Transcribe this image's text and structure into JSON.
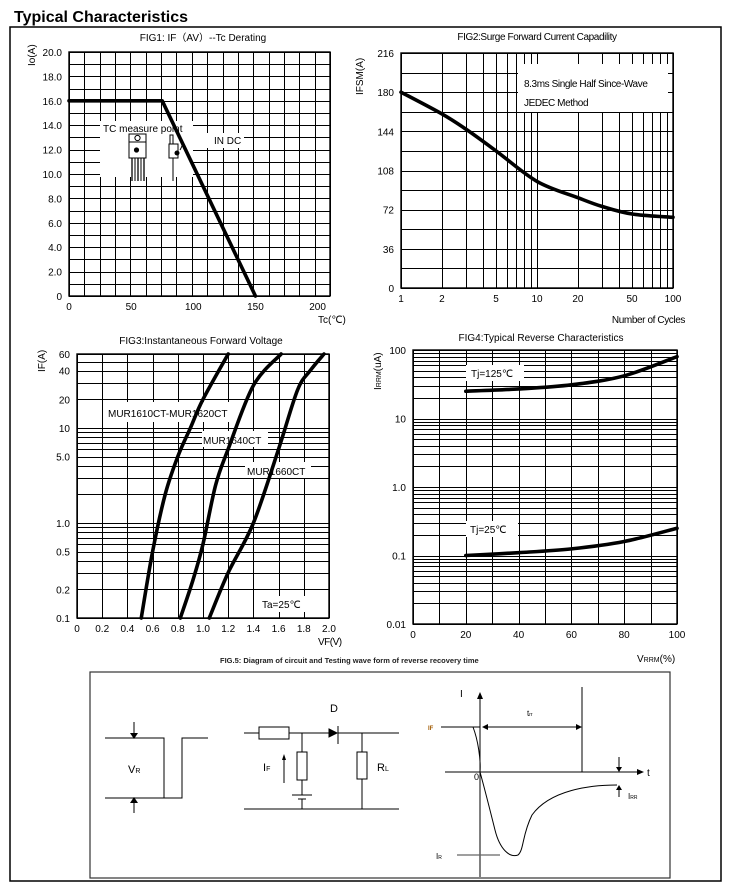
{
  "page_title": "Typical Characteristics",
  "chart_data": [
    {
      "type": "line",
      "title": "FIG1: IF（AV）--Tc  Derating",
      "xlabel": "Tc(℃)",
      "ylabel": "Io(A)",
      "x_scale": "linear",
      "y_scale": "linear",
      "xlim": [
        0,
        210
      ],
      "ylim": [
        0,
        20
      ],
      "grid": true,
      "xticks": [
        {
          "value": 0,
          "label": "0"
        },
        {
          "value": 50,
          "label": "50"
        },
        {
          "value": 100,
          "label": "100"
        },
        {
          "value": 150,
          "label": "150"
        },
        {
          "value": 200,
          "label": "200"
        }
      ],
      "yticks": [
        {
          "value": 0,
          "label": "0"
        },
        {
          "value": 2,
          "label": "2.0"
        },
        {
          "value": 4,
          "label": "4.0"
        },
        {
          "value": 6,
          "label": "6.0"
        },
        {
          "value": 8,
          "label": "8.0"
        },
        {
          "value": 10,
          "label": "10.0"
        },
        {
          "value": 12,
          "label": "12.0"
        },
        {
          "value": 14,
          "label": "14.0"
        },
        {
          "value": 16,
          "label": "16.0"
        },
        {
          "value": 18,
          "label": "18.0"
        },
        {
          "value": 20,
          "label": "20.0"
        }
      ],
      "series": [
        {
          "x": [
            0,
            75,
            150
          ],
          "y": [
            16,
            16,
            0
          ]
        }
      ],
      "annotations": {
        "measure_point": "TC measure point",
        "condition": "IN DC"
      }
    },
    {
      "type": "line",
      "title": "FIG2:Surge Forward Current Capadility",
      "xlabel": "Number of Cycles",
      "ylabel": "IFSM(A)",
      "x_scale": "log",
      "y_scale": "linear",
      "xlim": [
        1,
        100
      ],
      "ylim": [
        0,
        216
      ],
      "grid": true,
      "xticks": [
        {
          "value": 1,
          "label": "1"
        },
        {
          "value": 2,
          "label": "2"
        },
        {
          "value": 5,
          "label": "5"
        },
        {
          "value": 10,
          "label": "10"
        },
        {
          "value": 20,
          "label": "20"
        },
        {
          "value": 50,
          "label": "50"
        },
        {
          "value": 100,
          "label": "100"
        }
      ],
      "yticks": [
        {
          "value": 0,
          "label": "0"
        },
        {
          "value": 36,
          "label": "36"
        },
        {
          "value": 72,
          "label": "72"
        },
        {
          "value": 108,
          "label": "108"
        },
        {
          "value": 144,
          "label": "144"
        },
        {
          "value": 180,
          "label": "180"
        },
        {
          "value": 216,
          "label": "216"
        }
      ],
      "series": [
        {
          "x": [
            1,
            2,
            3,
            5,
            10,
            20,
            30,
            50,
            100
          ],
          "y": [
            180,
            160,
            146,
            126,
            98,
            83,
            75,
            68,
            65
          ]
        }
      ],
      "legend": {
        "line1": "8.3ms Single Half Since-Wave",
        "line2": "JEDEC Method"
      }
    },
    {
      "type": "line",
      "title": "FIG3:Instantaneous Forward Voltage",
      "xlabel": "VF(V)",
      "ylabel": "IF(A)",
      "x_scale": "linear",
      "y_scale": "log",
      "xlim": [
        0,
        2.0
      ],
      "ylim": [
        0.1,
        60
      ],
      "grid": true,
      "xticks": [
        {
          "value": 0,
          "label": "0"
        },
        {
          "value": 0.2,
          "label": "0.2"
        },
        {
          "value": 0.4,
          "label": "0.4"
        },
        {
          "value": 0.6,
          "label": "0.6"
        },
        {
          "value": 0.8,
          "label": "0.8"
        },
        {
          "value": 1.0,
          "label": "1.0"
        },
        {
          "value": 1.2,
          "label": "1.2"
        },
        {
          "value": 1.4,
          "label": "1.4"
        },
        {
          "value": 1.6,
          "label": "1.6"
        },
        {
          "value": 1.8,
          "label": "1.8"
        },
        {
          "value": 2.0,
          "label": "2.0"
        }
      ],
      "yticks": [
        {
          "value": 0.1,
          "label": "0.1"
        },
        {
          "value": 0.2,
          "label": "0.2"
        },
        {
          "value": 0.5,
          "label": "0.5"
        },
        {
          "value": 1,
          "label": "1.0"
        },
        {
          "value": 5,
          "label": "5.0"
        },
        {
          "value": 10,
          "label": "10"
        },
        {
          "value": 20,
          "label": "20"
        },
        {
          "value": 40,
          "label": "40"
        },
        {
          "value": 60,
          "label": "60"
        }
      ],
      "series": [
        {
          "name": "MUR1610CT-MUR1620CT",
          "x": [
            0.51,
            0.6,
            0.7,
            0.8,
            0.9,
            1.0,
            1.2
          ],
          "y": [
            0.1,
            0.5,
            2,
            5,
            10,
            20,
            60
          ]
        },
        {
          "name": "MUR1640CT",
          "x": [
            0.82,
            0.92,
            1.0,
            1.1,
            1.2,
            1.4,
            1.62
          ],
          "y": [
            0.1,
            0.25,
            0.6,
            2.5,
            6,
            28,
            60
          ]
        },
        {
          "name": "MUR1660CT",
          "x": [
            1.05,
            1.2,
            1.4,
            1.6,
            1.75,
            1.85,
            1.96
          ],
          "y": [
            0.1,
            0.3,
            1,
            6,
            25,
            40,
            60
          ]
        }
      ],
      "annotations": {
        "temperature": "Ta=25℃"
      }
    },
    {
      "type": "line",
      "title": "FIG4:Typical Reverse Characteristics",
      "xlabel": {
        "base": "V",
        "sub": "RRM",
        "unit": "(%)"
      },
      "ylabel": {
        "base": "I",
        "sub": "RRM",
        "unit": "(uA)"
      },
      "x_scale": "linear",
      "y_scale": "log",
      "xlim": [
        0,
        100
      ],
      "ylim": [
        0.01,
        100
      ],
      "grid": true,
      "xticks": [
        {
          "value": 0,
          "label": "0"
        },
        {
          "value": 20,
          "label": "20"
        },
        {
          "value": 40,
          "label": "40"
        },
        {
          "value": 60,
          "label": "60"
        },
        {
          "value": 80,
          "label": "80"
        },
        {
          "value": 100,
          "label": "100"
        }
      ],
      "yticks": [
        {
          "value": 0.01,
          "label": "0.01"
        },
        {
          "value": 0.1,
          "label": "0.1"
        },
        {
          "value": 1,
          "label": "1.0"
        },
        {
          "value": 10,
          "label": "10"
        },
        {
          "value": 100,
          "label": "100"
        }
      ],
      "series": [
        {
          "name": "Tj=125℃",
          "x": [
            20,
            40,
            60,
            80,
            100
          ],
          "y": [
            25,
            27,
            31,
            42,
            80
          ]
        },
        {
          "name": "Tj=25℃",
          "x": [
            20,
            40,
            60,
            80,
            100
          ],
          "y": [
            0.1,
            0.11,
            0.125,
            0.16,
            0.25
          ]
        }
      ]
    }
  ],
  "figure5": {
    "caption": "FIG.5: Diagram of circuit and Testing wave form of reverse recovery time",
    "vr": {
      "base": "V",
      "sub": "R"
    },
    "diode": "D",
    "if_label": {
      "base": "I",
      "sub": "F"
    },
    "rl": {
      "base": "R",
      "sub": "L"
    },
    "axis_i": "I",
    "axis_t": "t",
    "origin": "0",
    "if_level": "IF",
    "trr": {
      "base": "t",
      "sub": "rr"
    },
    "irr": {
      "base": "I",
      "sub": "RR"
    },
    "ir": {
      "base": "I",
      "sub": "R"
    }
  }
}
